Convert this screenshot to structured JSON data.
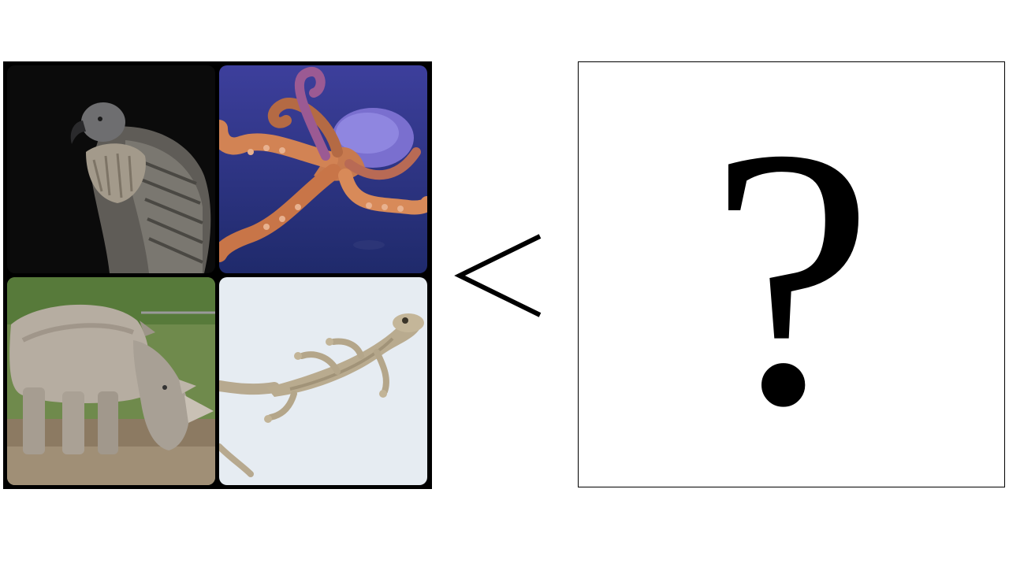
{
  "puzzle": {
    "animals": [
      {
        "name": "vulture",
        "icon": "vulture-photo"
      },
      {
        "name": "octopus",
        "icon": "octopus-photo"
      },
      {
        "name": "rhinoceros",
        "icon": "rhinoceros-photo"
      },
      {
        "name": "gecko",
        "icon": "gecko-photo"
      }
    ],
    "comparison_symbol": "<",
    "answer_placeholder": "?"
  },
  "colors": {
    "background": "#ffffff",
    "grid_frame": "#000000",
    "octopus_water": "#3a3f9e",
    "gecko_background": "#e6ecf2"
  }
}
